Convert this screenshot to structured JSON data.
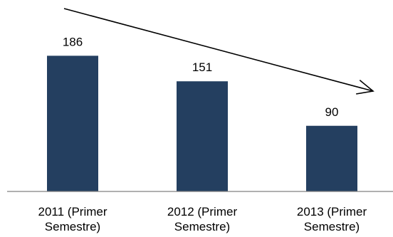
{
  "chart_data": {
    "type": "bar",
    "categories": [
      [
        "2011 (Primer",
        "Semestre)"
      ],
      [
        "2012 (Primer",
        "Semestre)"
      ],
      [
        "2013 (Primer",
        "Semestre)"
      ]
    ],
    "values": [
      186,
      151,
      90
    ],
    "data_labels": [
      "186",
      "151",
      "90"
    ],
    "title": "",
    "xlabel": "",
    "ylabel": "",
    "ylim": [
      0,
      200
    ],
    "grid": false,
    "legend": "none",
    "bar_color": "#243f60",
    "axis_color": "#808080",
    "annotations": [
      {
        "type": "trend-arrow",
        "direction": "downward",
        "color": "#000000"
      }
    ]
  }
}
